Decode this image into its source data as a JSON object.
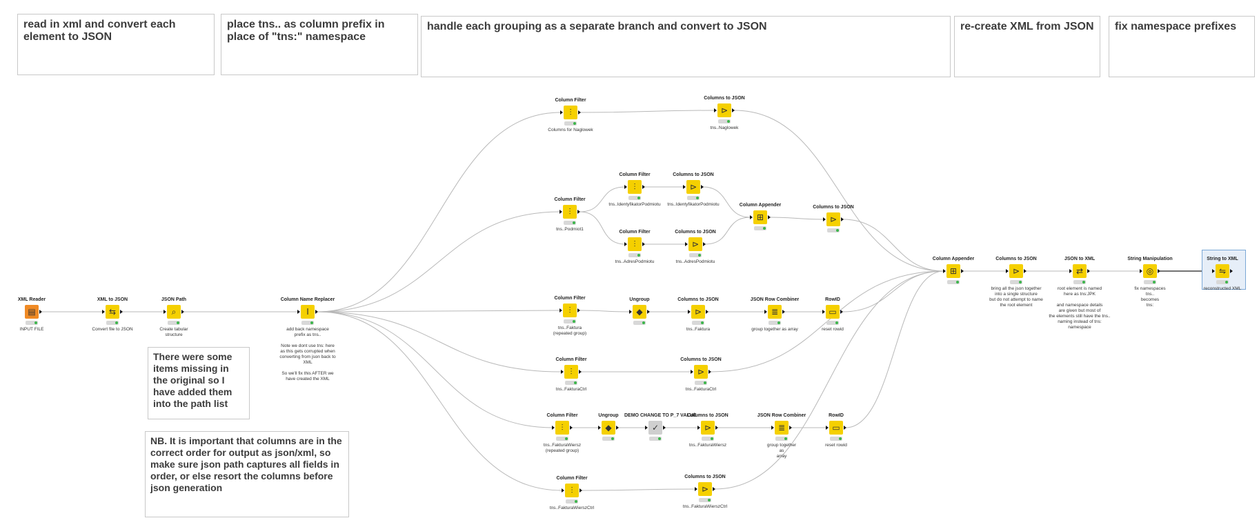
{
  "annotations": {
    "a1": "read in xml and convert each element to JSON",
    "a2": "place tns.. as column prefix in place of \"tns:\" namespace",
    "a3": "handle each grouping as a separate branch and convert to JSON",
    "a4": "re-create XML from JSON",
    "a5": "fix namespace prefixes",
    "a6": "There were some items missing in the original so I have added them into the path list",
    "a7": "NB. It is important that columns are in the correct order for output as json/xml, so make sure json path captures all fields in order, or else resort the columns before json generation"
  },
  "nodes": {
    "n1": {
      "title": "XML Reader",
      "desc": "INPUT FILE",
      "icon": "xml-reader-icon"
    },
    "n2": {
      "title": "XML to JSON",
      "desc": "Convert file to JSON",
      "icon": "xml-to-json-icon"
    },
    "n3": {
      "title": "JSON Path",
      "desc": "Create tabular\nstructure",
      "icon": "json-path-icon"
    },
    "n4": {
      "title": "Column Name Replacer",
      "desc": "add back namespace\nprefix as tns..\n\nNote we dont use tns: here\nas this gets corrupted when\nconverting from json back to XML\n\nSo we'll fix this AFTER we have created the XML",
      "icon": "column-name-replacer-icon"
    },
    "n5": {
      "title": "Column Filter",
      "desc": "Columns for Naglowek",
      "icon": "column-filter-icon"
    },
    "n6": {
      "title": "Columns to JSON",
      "desc": "tns..Naglowek",
      "icon": "columns-to-json-icon"
    },
    "n7": {
      "title": "Column Filter",
      "desc": "tns..Podmiot1",
      "icon": "column-filter-icon"
    },
    "n8": {
      "title": "Column Filter",
      "desc": "tns..IdentyfikatorPodmiotu",
      "icon": "column-filter-icon"
    },
    "n9": {
      "title": "Columns to JSON",
      "desc": "tns..IdentyfikatorPodmiotu",
      "icon": "columns-to-json-icon"
    },
    "n10": {
      "title": "Column Filter",
      "desc": "tns..AdresPodmiotu",
      "icon": "column-filter-icon"
    },
    "n11": {
      "title": "Columns to JSON",
      "desc": "tns..AdresPodmiotu",
      "icon": "columns-to-json-icon"
    },
    "n12": {
      "title": "Column Appender",
      "desc": "",
      "icon": "column-appender-icon"
    },
    "n13": {
      "title": "Columns to JSON",
      "desc": "",
      "icon": "columns-to-json-icon"
    },
    "n14": {
      "title": "Column Filter",
      "desc": "tns..Faktura\n(repeated group)",
      "icon": "column-filter-icon"
    },
    "n15": {
      "title": "Ungroup",
      "desc": "",
      "icon": "ungroup-icon"
    },
    "n16": {
      "title": "Columns to JSON",
      "desc": "tns..Faktura",
      "icon": "columns-to-json-icon"
    },
    "n17": {
      "title": "JSON Row Combiner",
      "desc": "group together as array",
      "icon": "json-row-combiner-icon"
    },
    "n18": {
      "title": "RowID",
      "desc": "reset rowid",
      "icon": "rowid-icon"
    },
    "n19": {
      "title": "Column Filter",
      "desc": "tns..FakturaCtrl",
      "icon": "column-filter-icon"
    },
    "n20": {
      "title": "Columns to JSON",
      "desc": "tns..FakturaCtrl",
      "icon": "columns-to-json-icon"
    },
    "n21": {
      "title": "Column Filter",
      "desc": "tns..FakturaWiersz\n(repeated group)",
      "icon": "column-filter-icon"
    },
    "n22": {
      "title": "Ungroup",
      "desc": "",
      "icon": "ungroup-icon"
    },
    "n23": {
      "title": "DEMO CHANGE TO P_7 VALUE",
      "desc": "",
      "icon": "metanode-icon"
    },
    "n24": {
      "title": "Columns to JSON",
      "desc": "tns..FakturaWiersz",
      "icon": "columns-to-json-icon"
    },
    "n25": {
      "title": "JSON Row Combiner",
      "desc": "group together\nas\narray",
      "icon": "json-row-combiner-icon"
    },
    "n26": {
      "title": "RowID",
      "desc": "reset rowid",
      "icon": "rowid-icon"
    },
    "n27": {
      "title": "Column Filter",
      "desc": "tns..FakturaWierszCtrl",
      "icon": "column-filter-icon"
    },
    "n28": {
      "title": "Columns to JSON",
      "desc": "tns..FakturaWierszCtrl",
      "icon": "columns-to-json-icon"
    },
    "n29": {
      "title": "Column Appender",
      "desc": "",
      "icon": "column-appender-icon"
    },
    "n30": {
      "title": "Columns to JSON",
      "desc": "bring all the json together\ninto a single structure\nbut do not attempt to name\nthe root element",
      "icon": "columns-to-json-icon"
    },
    "n31": {
      "title": "JSON to XML",
      "desc": "root element is named\nhere as tns:JPK\n\nand namespace details\nare given but most of\nthe elements still have the tns..\nnaming instead of tns: namespace",
      "icon": "json-to-xml-icon"
    },
    "n32": {
      "title": "String Manipulation",
      "desc": "fix namespaces\ntns..\nbecomes\ntns:",
      "icon": "string-manipulation-icon"
    },
    "n33": {
      "title": "String to XML",
      "desc": "reconstructed XML",
      "icon": "string-to-xml-icon"
    }
  },
  "connections": [
    [
      "n1",
      "n2"
    ],
    [
      "n2",
      "n3"
    ],
    [
      "n3",
      "n4"
    ],
    [
      "n4",
      "n5"
    ],
    [
      "n5",
      "n6"
    ],
    [
      "n6",
      "n29"
    ],
    [
      "n4",
      "n7"
    ],
    [
      "n7",
      "n8"
    ],
    [
      "n8",
      "n9"
    ],
    [
      "n9",
      "n12"
    ],
    [
      "n7",
      "n10"
    ],
    [
      "n10",
      "n11"
    ],
    [
      "n11",
      "n12"
    ],
    [
      "n12",
      "n13"
    ],
    [
      "n13",
      "n29"
    ],
    [
      "n4",
      "n14"
    ],
    [
      "n14",
      "n15"
    ],
    [
      "n15",
      "n16"
    ],
    [
      "n16",
      "n17"
    ],
    [
      "n17",
      "n18"
    ],
    [
      "n18",
      "n29"
    ],
    [
      "n4",
      "n19"
    ],
    [
      "n19",
      "n20"
    ],
    [
      "n20",
      "n29"
    ],
    [
      "n4",
      "n21"
    ],
    [
      "n21",
      "n22"
    ],
    [
      "n22",
      "n23"
    ],
    [
      "n23",
      "n24"
    ],
    [
      "n24",
      "n25"
    ],
    [
      "n25",
      "n26"
    ],
    [
      "n26",
      "n29"
    ],
    [
      "n4",
      "n27"
    ],
    [
      "n27",
      "n28"
    ],
    [
      "n28",
      "n29"
    ],
    [
      "n29",
      "n30"
    ],
    [
      "n30",
      "n31"
    ],
    [
      "n31",
      "n32"
    ],
    [
      "n32",
      "n33"
    ]
  ],
  "colors": {
    "node": "#f5d000",
    "reader": "#f08a24",
    "link": "#b8b8b8",
    "status_ok": "#3bb54a"
  }
}
